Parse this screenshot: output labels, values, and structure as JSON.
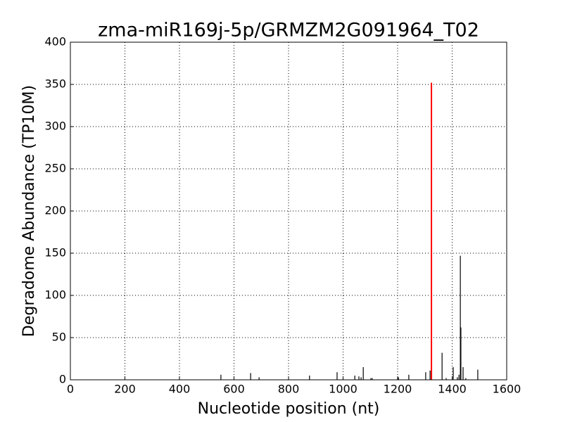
{
  "chart_data": {
    "type": "stem",
    "title": "zma-miR169j-5p/GRMZM2G091964_T02",
    "xlabel": "Nucleotide position (nt)",
    "ylabel": "Degradome Abundance (TP10M)",
    "series": [
      {
        "color": "#000000",
        "x": [
          552,
          661,
          692,
          877,
          978,
          1043,
          1058,
          1066,
          1074,
          1102,
          1107,
          1203,
          1241,
          1303,
          1319,
          1363,
          1378,
          1404,
          1419,
          1425,
          1430,
          1432,
          1440,
          1450,
          1494
        ],
        "values": [
          6,
          8,
          3,
          5,
          9,
          5,
          4,
          3,
          15,
          2,
          2,
          3,
          6,
          9,
          11,
          32,
          2,
          15,
          3,
          6,
          147,
          62,
          15,
          2,
          12
        ]
      },
      {
        "color": "#ff0000",
        "x": [
          1324
        ],
        "values": [
          352
        ]
      }
    ],
    "xlim": [
      0,
      1600
    ],
    "xticks": [
      0,
      200,
      400,
      600,
      800,
      1000,
      1200,
      1400,
      1600
    ],
    "ylim": [
      0,
      400
    ],
    "yticks": [
      0,
      50,
      100,
      150,
      200,
      250,
      300,
      350,
      400
    ],
    "grid": true
  }
}
